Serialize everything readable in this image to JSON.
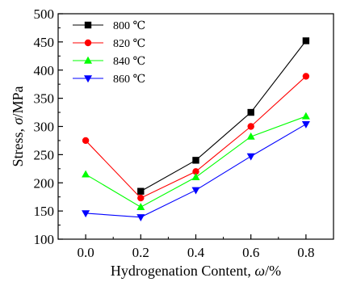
{
  "chart_data": {
    "type": "line",
    "title": "",
    "xlabel": "Hydrogenation Content, ",
    "xlabel_symbol": "ω",
    "xlabel_unit": "/%",
    "ylabel": "Stress, ",
    "ylabel_symbol": "σ",
    "ylabel_unit": "/MPa",
    "x": [
      0.0,
      0.2,
      0.4,
      0.6,
      0.8
    ],
    "x_tick_labels": [
      "0.0",
      "0.2",
      "0.4",
      "0.6",
      "0.8"
    ],
    "xlim": [
      -0.1,
      0.9
    ],
    "ylim": [
      100,
      500
    ],
    "y_ticks": [
      100,
      150,
      200,
      250,
      300,
      350,
      400,
      450,
      500
    ],
    "grid": false,
    "legend_position": "top-left",
    "series": [
      {
        "name": "800 ℃",
        "color": "#000000",
        "marker": "square",
        "values": [
          null,
          185,
          240,
          325,
          452
        ]
      },
      {
        "name": "820 ℃",
        "color": "#ff0000",
        "marker": "circle",
        "values": [
          275,
          173,
          220,
          300,
          389
        ]
      },
      {
        "name": "840 ℃",
        "color": "#00ff00",
        "marker": "triangle-up",
        "values": [
          215,
          157,
          210,
          282,
          318
        ]
      },
      {
        "name": "860 ℃",
        "color": "#0000ff",
        "marker": "triangle-down",
        "values": [
          146,
          139,
          187,
          247,
          304
        ]
      }
    ]
  }
}
